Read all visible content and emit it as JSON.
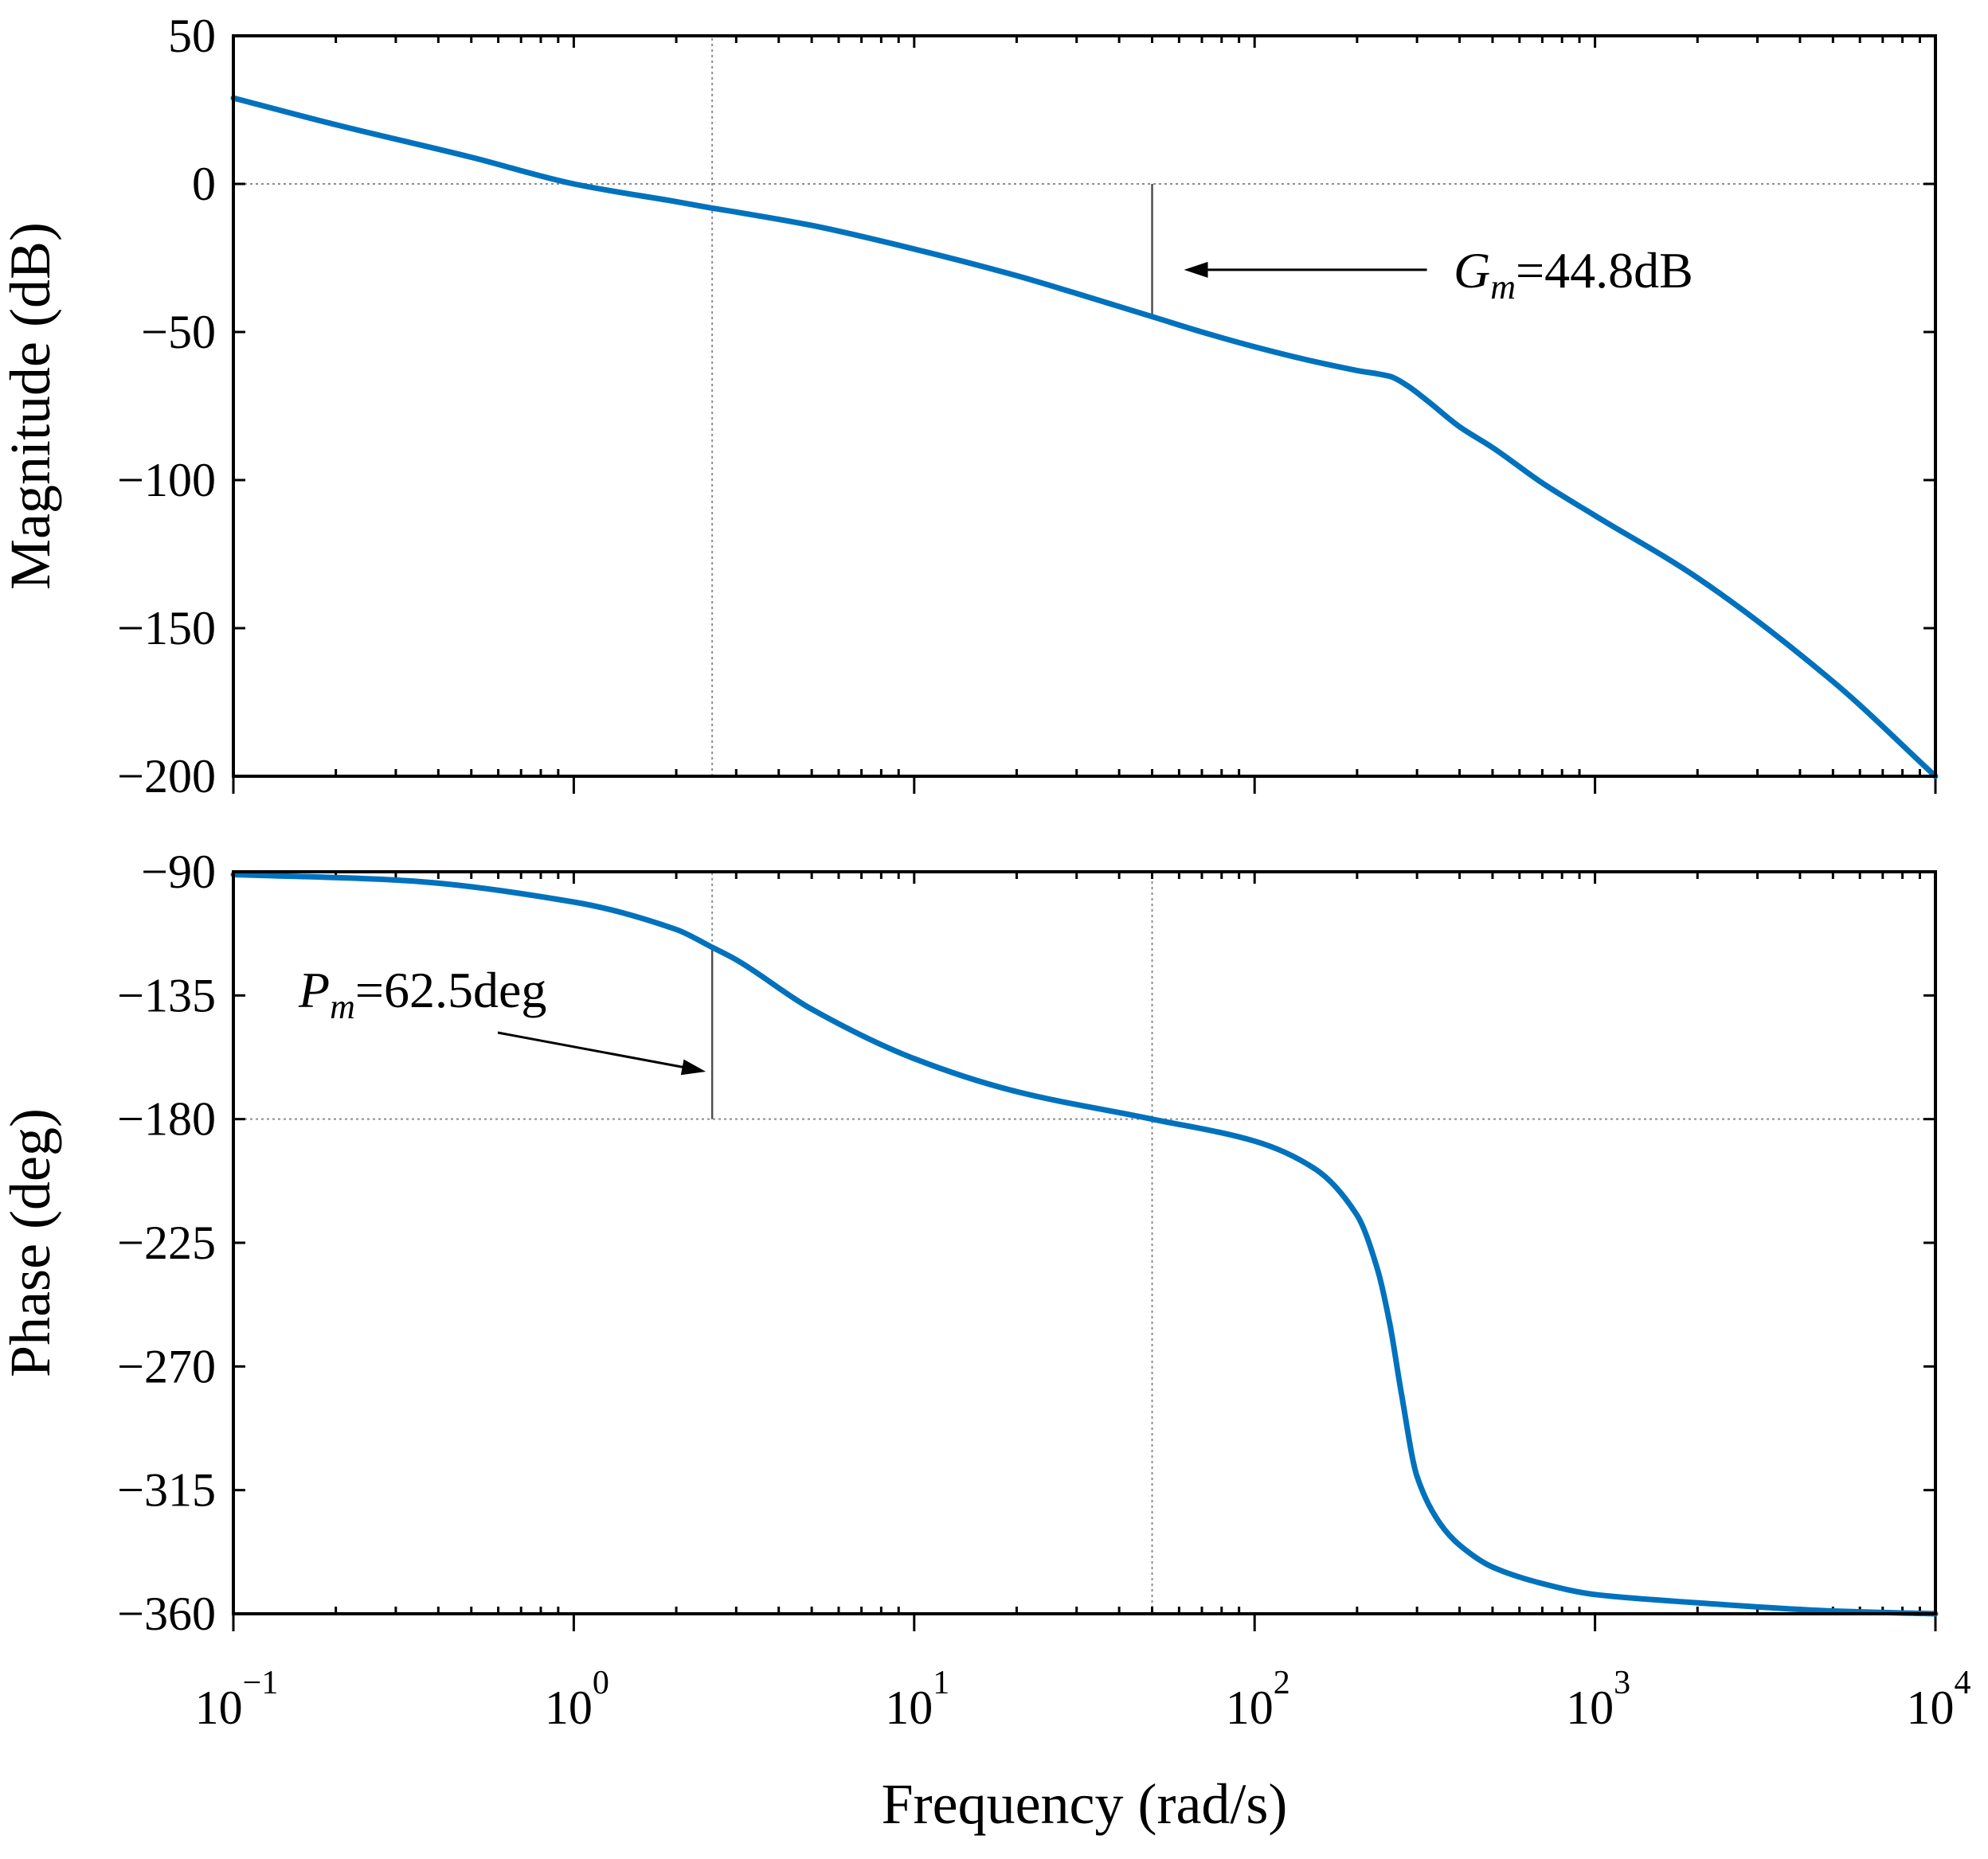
{
  "chart_data": [
    {
      "type": "line",
      "panel": "magnitude",
      "ylabel": "Magnitude (dB)",
      "xscale": "log",
      "xlim": [
        0.1,
        10000
      ],
      "ylim": [
        -200,
        50
      ],
      "yticks": [
        50,
        0,
        -50,
        -100,
        -150,
        -200
      ],
      "ytick_labels": [
        "50",
        "0",
        "−50",
        "−100",
        "−150",
        "−200"
      ],
      "grid": false,
      "series": [
        {
          "name": "Magnitude",
          "color": "#0072BD",
          "x": [
            0.1,
            0.2,
            0.5,
            1,
            2,
            2.5,
            3,
            5,
            10,
            20,
            30,
            50,
            70,
            100,
            150,
            200,
            250,
            280,
            320,
            400,
            500,
            700,
            1000,
            2000,
            5000,
            10000
          ],
          "y": [
            29,
            20,
            9,
            0,
            -6,
            -8,
            -9.5,
            -14,
            -22,
            -31,
            -37,
            -44.8,
            -50,
            -55,
            -60,
            -63,
            -65,
            -68,
            -73,
            -82,
            -89,
            -101,
            -112,
            -133,
            -168,
            -200
          ]
        }
      ],
      "reference_lines": [
        {
          "orientation": "horizontal",
          "y": 0,
          "style": "dotted"
        },
        {
          "orientation": "vertical",
          "x": 2.55,
          "style": "dotted"
        },
        {
          "orientation": "vertical",
          "x": 50,
          "y_from": -44.8,
          "y_to": 0,
          "style": "solid"
        }
      ],
      "annotation": {
        "symbol": "G",
        "subscript": "m",
        "text": "=44.8dB",
        "arrow_to_x": 50
      }
    },
    {
      "type": "line",
      "panel": "phase",
      "ylabel": "Phase (deg)",
      "xlabel": "Frequency (rad/s)",
      "xscale": "log",
      "xlim": [
        0.1,
        10000
      ],
      "ylim": [
        -360,
        -90
      ],
      "yticks": [
        -90,
        -135,
        -180,
        -225,
        -270,
        -315,
        -360
      ],
      "ytick_labels": [
        "−90",
        "−135",
        "−180",
        "−225",
        "−270",
        "−315",
        "−360"
      ],
      "xtick_labels": [
        {
          "base": "10",
          "exp": "−1"
        },
        {
          "base": "10",
          "exp": "0"
        },
        {
          "base": "10",
          "exp": "1"
        },
        {
          "base": "10",
          "exp": "2"
        },
        {
          "base": "10",
          "exp": "3"
        },
        {
          "base": "10",
          "exp": "4"
        }
      ],
      "grid": false,
      "series": [
        {
          "name": "Phase",
          "color": "#0072BD",
          "x": [
            0.1,
            0.3,
            1,
            2,
            2.55,
            3,
            5,
            10,
            20,
            50,
            100,
            150,
            200,
            230,
            250,
            270,
            300,
            350,
            400,
            500,
            700,
            1000,
            2000,
            5000,
            10000
          ],
          "y": [
            -91,
            -93,
            -101,
            -111,
            -117.5,
            -122,
            -140,
            -158,
            -170,
            -180,
            -188,
            -198,
            -215,
            -235,
            -255,
            -280,
            -310,
            -327,
            -335,
            -343,
            -349,
            -353,
            -356,
            -359,
            -360
          ]
        }
      ],
      "reference_lines": [
        {
          "orientation": "horizontal",
          "y": -180,
          "style": "dotted"
        },
        {
          "orientation": "vertical",
          "x": 2.55,
          "y_from": -180,
          "y_to": -117.5,
          "style": "solid"
        },
        {
          "orientation": "vertical",
          "x": 2.55,
          "y_from": -117.5,
          "y_to": -90,
          "style": "dotted"
        },
        {
          "orientation": "vertical",
          "x": 50,
          "style": "dotted"
        }
      ],
      "annotation": {
        "symbol": "P",
        "subscript": "m",
        "text": "=62.5deg",
        "arrow_to_x": 2.55
      }
    }
  ]
}
